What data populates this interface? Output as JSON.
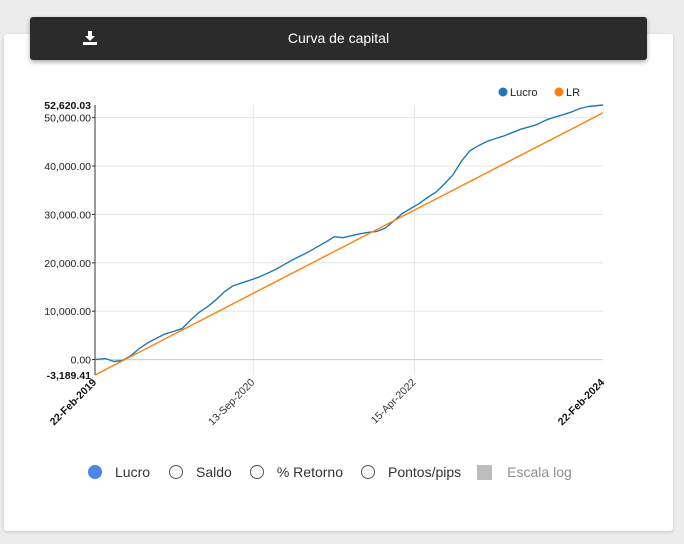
{
  "header": {
    "title": "Curva de capital",
    "download_icon": "download-icon"
  },
  "controls": [
    {
      "label": "Lucro",
      "type": "radio",
      "checked": true
    },
    {
      "label": "Saldo",
      "type": "radio",
      "checked": false
    },
    {
      "label": "% Retorno",
      "type": "radio",
      "checked": false
    },
    {
      "label": "Pontos/pips",
      "type": "radio",
      "checked": false
    },
    {
      "label": "Escala log",
      "type": "checkbox",
      "checked": false,
      "disabled": true
    }
  ],
  "colors": {
    "lucro": "#1f77b4",
    "lr": "#ff7f0e",
    "radio_selected": "#4a86e8",
    "header_bg": "#2b2b2b"
  },
  "chart_data": {
    "type": "line",
    "legend": [
      "Lucro",
      "LR"
    ],
    "legend_position": "top-right",
    "y_tick_labels": [
      "0.00",
      "10,000.00",
      "20,000.00",
      "30,000.00",
      "40,000.00",
      "50,000.00"
    ],
    "y_ticks": [
      0,
      10000,
      20000,
      30000,
      40000,
      50000
    ],
    "y_max_label": "52,620.03",
    "y_min_label": "-3,189.41",
    "ylim": [
      -3189.41,
      52620.03
    ],
    "x_tick_labels": [
      "22-Feb-2019",
      "13-Sep-2020",
      "15-Apr-2022",
      "22-Feb-2024"
    ],
    "x_ticks": [
      "2019-02-22",
      "2020-09-13",
      "2022-04-15",
      "2024-02-22"
    ],
    "xlim": [
      "2019-02-22",
      "2024-02-22"
    ],
    "grid": true,
    "series": [
      {
        "name": "Lucro",
        "x": [
          "2019-02-22",
          "2019-04-01",
          "2019-05-01",
          "2019-06-01",
          "2019-07-01",
          "2019-08-01",
          "2019-09-01",
          "2019-10-01",
          "2019-11-01",
          "2019-12-01",
          "2020-01-01",
          "2020-02-01",
          "2020-03-01",
          "2020-04-01",
          "2020-05-01",
          "2020-06-01",
          "2020-07-01",
          "2020-08-01",
          "2020-09-01",
          "2020-10-01",
          "2020-11-01",
          "2020-12-01",
          "2021-01-01",
          "2021-02-01",
          "2021-03-01",
          "2021-04-01",
          "2021-05-01",
          "2021-06-01",
          "2021-07-01",
          "2021-08-01",
          "2021-09-01",
          "2021-10-01",
          "2021-11-01",
          "2021-12-01",
          "2022-01-01",
          "2022-02-01",
          "2022-03-01",
          "2022-04-01",
          "2022-05-01",
          "2022-06-01",
          "2022-07-01",
          "2022-08-01",
          "2022-09-01",
          "2022-10-01",
          "2022-11-01",
          "2022-12-01",
          "2023-01-01",
          "2023-02-01",
          "2023-03-01",
          "2023-04-01",
          "2023-05-01",
          "2023-06-01",
          "2023-07-01",
          "2023-08-01",
          "2023-09-01",
          "2023-10-01",
          "2023-11-01",
          "2023-12-01",
          "2024-01-01",
          "2024-02-22"
        ],
        "values": [
          0,
          200,
          -400,
          -200,
          800,
          2300,
          3500,
          4400,
          5300,
          5800,
          6400,
          8200,
          9700,
          10900,
          12300,
          14000,
          15200,
          15800,
          16400,
          17000,
          17800,
          18600,
          19600,
          20600,
          21400,
          22300,
          23300,
          24300,
          25400,
          25200,
          25600,
          26000,
          26300,
          26500,
          27200,
          28700,
          30100,
          31200,
          32200,
          33500,
          34600,
          36300,
          38200,
          41000,
          43200,
          44200,
          45100,
          45700,
          46200,
          46900,
          47600,
          48100,
          48600,
          49500,
          50100,
          50600,
          51200,
          51900,
          52300,
          52620.03
        ]
      },
      {
        "name": "LR",
        "x": [
          "2019-02-22",
          "2024-02-22"
        ],
        "values": [
          -3189.41,
          51000
        ]
      }
    ]
  }
}
